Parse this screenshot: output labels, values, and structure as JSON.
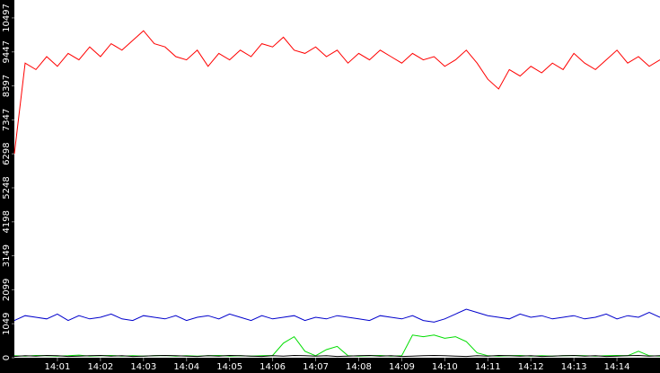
{
  "chart_data": {
    "type": "line",
    "x": [
      840,
      840.25,
      840.5,
      840.75,
      841,
      841.25,
      841.5,
      841.75,
      842,
      842.25,
      842.5,
      842.75,
      843,
      843.25,
      843.5,
      843.75,
      844,
      844.25,
      844.5,
      844.75,
      845,
      845.25,
      845.5,
      845.75,
      846,
      846.25,
      846.5,
      846.75,
      847,
      847.25,
      847.5,
      847.75,
      848,
      848.25,
      848.5,
      848.75,
      849,
      849.25,
      849.5,
      849.75,
      850,
      850.25,
      850.5,
      850.75,
      851,
      851.25,
      851.5,
      851.75,
      852,
      852.25,
      852.5,
      852.75,
      853,
      853.25,
      853.5,
      853.75,
      854,
      854.25,
      854.5,
      854.75,
      855
    ],
    "series": [
      {
        "color": "#ff0000",
        "values": [
          6300,
          9100,
          8900,
          9300,
          9000,
          9400,
          9200,
          9600,
          9300,
          9700,
          9500,
          9800,
          10100,
          9700,
          9600,
          9300,
          9200,
          9500,
          9000,
          9400,
          9200,
          9500,
          9300,
          9700,
          9600,
          9900,
          9500,
          9400,
          9600,
          9300,
          9500,
          9100,
          9400,
          9200,
          9500,
          9300,
          9100,
          9400,
          9200,
          9300,
          9000,
          9200,
          9500,
          9100,
          8600,
          8300,
          8900,
          8700,
          9000,
          8800,
          9100,
          8900,
          9400,
          9100,
          8900,
          9200,
          9500,
          9100,
          9300,
          9000,
          9200
        ]
      },
      {
        "color": "#0000cc",
        "values": [
          1150,
          1300,
          1250,
          1200,
          1350,
          1150,
          1300,
          1200,
          1250,
          1350,
          1200,
          1150,
          1300,
          1250,
          1200,
          1300,
          1150,
          1250,
          1300,
          1200,
          1350,
          1250,
          1150,
          1300,
          1200,
          1250,
          1300,
          1150,
          1250,
          1200,
          1300,
          1250,
          1200,
          1150,
          1300,
          1250,
          1200,
          1300,
          1150,
          1100,
          1200,
          1350,
          1500,
          1400,
          1300,
          1250,
          1200,
          1350,
          1250,
          1300,
          1200,
          1250,
          1300,
          1200,
          1250,
          1350,
          1200,
          1300,
          1250,
          1400,
          1250
        ]
      },
      {
        "color": "#00dd00",
        "values": [
          60,
          50,
          70,
          60,
          50,
          60,
          80,
          50,
          60,
          70,
          50,
          60,
          50,
          60,
          70,
          50,
          60,
          50,
          60,
          70,
          50,
          60,
          50,
          60,
          70,
          450,
          650,
          200,
          60,
          250,
          350,
          60,
          50,
          60,
          70,
          50,
          60,
          700,
          650,
          700,
          600,
          650,
          500,
          150,
          60,
          50,
          60,
          70,
          50,
          60,
          50,
          60,
          70,
          60,
          50,
          60,
          70,
          60,
          200,
          60,
          50
        ]
      },
      {
        "color": "#000000",
        "values": [
          40,
          60,
          50,
          70,
          60,
          40,
          50,
          60,
          70,
          50,
          60,
          40,
          50,
          60,
          70,
          60,
          50,
          40,
          60,
          50,
          70,
          60,
          50,
          40,
          60,
          50,
          70,
          60,
          50,
          60,
          40,
          50,
          60,
          70,
          50,
          60,
          40,
          50,
          60,
          70,
          60,
          50,
          40,
          60,
          50,
          70,
          60,
          50,
          60,
          40,
          50,
          60,
          70,
          50,
          60,
          40,
          50,
          60,
          70,
          50,
          60
        ]
      }
    ],
    "xlim": [
      840,
      855
    ],
    "ylim": [
      0,
      11050
    ],
    "yticks": [
      0,
      1049,
      2099,
      3149,
      4198,
      5248,
      6298,
      7347,
      8397,
      9447,
      10497
    ],
    "xticks": [
      {
        "value": 841,
        "label": "14:01"
      },
      {
        "value": 842,
        "label": "14:02"
      },
      {
        "value": 843,
        "label": "14:03"
      },
      {
        "value": 844,
        "label": "14:04"
      },
      {
        "value": 845,
        "label": "14:05"
      },
      {
        "value": 846,
        "label": "14:06"
      },
      {
        "value": 847,
        "label": "14:07"
      },
      {
        "value": 848,
        "label": "14:08"
      },
      {
        "value": 849,
        "label": "14:09"
      },
      {
        "value": 850,
        "label": "14:10"
      },
      {
        "value": 851,
        "label": "14:11"
      },
      {
        "value": 852,
        "label": "14:12"
      },
      {
        "value": 853,
        "label": "14:13"
      },
      {
        "value": 854,
        "label": "14:14"
      }
    ]
  }
}
